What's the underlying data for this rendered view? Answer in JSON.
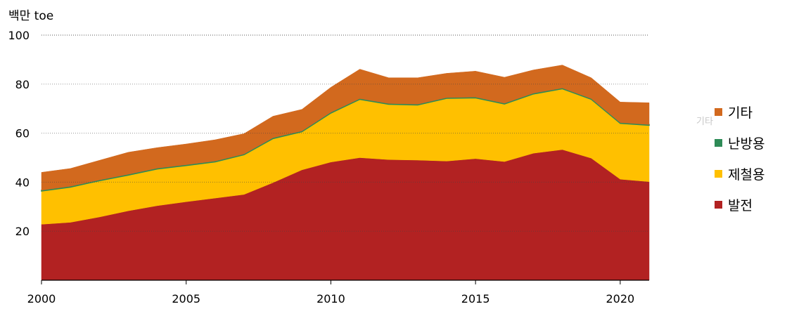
{
  "chart_data": {
    "type": "area",
    "stacked": true,
    "ylabel": "백만 toe",
    "xlabel": "",
    "x": [
      2000,
      2001,
      2002,
      2003,
      2004,
      2005,
      2006,
      2007,
      2008,
      2009,
      2010,
      2011,
      2012,
      2013,
      2014,
      2015,
      2016,
      2017,
      2018,
      2019,
      2020,
      2021
    ],
    "xticks": [
      2000,
      2005,
      2010,
      2015,
      2020
    ],
    "yticks": [
      20,
      40,
      60,
      80,
      100
    ],
    "ylim": [
      0,
      100
    ],
    "xlim": [
      2000,
      2021
    ],
    "grid": "horizontal dotted",
    "legend_position": "right",
    "series": [
      {
        "name": "발전",
        "color": "#b22222",
        "values": [
          22.8,
          23.6,
          25.8,
          28.3,
          30.4,
          32.0,
          33.5,
          35.0,
          39.8,
          45.0,
          48.2,
          50.0,
          49.2,
          49.0,
          48.6,
          49.6,
          48.4,
          51.8,
          53.3,
          49.8,
          41.2,
          40.2
        ]
      },
      {
        "name": "제철용",
        "color": "#ffc000",
        "values": [
          13.6,
          14.4,
          14.8,
          14.6,
          15.0,
          14.8,
          14.8,
          16.2,
          18.0,
          15.6,
          20.0,
          23.8,
          22.6,
          22.5,
          25.6,
          24.8,
          23.5,
          24.2,
          24.8,
          24.0,
          22.8,
          23.0
        ]
      },
      {
        "name": "난방용",
        "color": "#2e8b57",
        "values": [
          0.3,
          0.3,
          0.3,
          0.3,
          0.3,
          0.3,
          0.3,
          0.3,
          0.3,
          0.3,
          0.3,
          0.3,
          0.3,
          0.3,
          0.3,
          0.3,
          0.3,
          0.3,
          0.3,
          0.3,
          0.3,
          0.3
        ]
      },
      {
        "name": "기타",
        "color": "#d2691e",
        "values": [
          7.3,
          7.3,
          8.0,
          9.0,
          8.4,
          8.5,
          8.7,
          8.3,
          8.8,
          8.8,
          10.2,
          12.0,
          10.5,
          10.8,
          9.9,
          10.6,
          10.6,
          9.5,
          9.4,
          8.5,
          8.4,
          8.9
        ]
      }
    ]
  },
  "legend": {
    "items": [
      {
        "label": "기타",
        "color": "#d2691e"
      },
      {
        "label": "난방용",
        "color": "#2e8b57"
      },
      {
        "label": "제철용",
        "color": "#ffc000"
      },
      {
        "label": "발전",
        "color": "#b22222"
      }
    ],
    "ghost_text": "기타"
  }
}
